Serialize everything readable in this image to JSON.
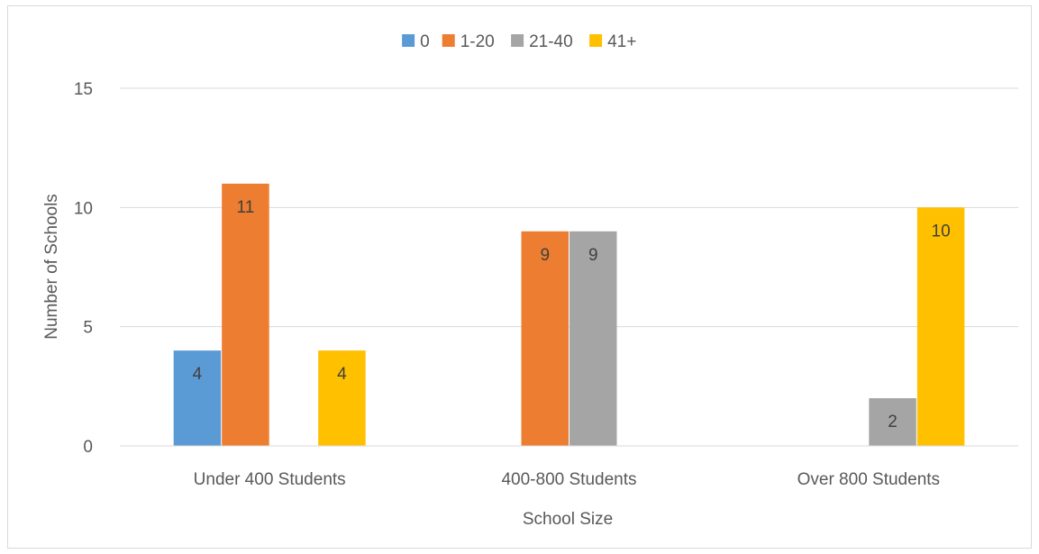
{
  "chart_data": {
    "type": "bar",
    "title": "",
    "xlabel": "School Size",
    "ylabel": "Number of Schools",
    "categories": [
      "Under 400 Students",
      "400-800 Students",
      "Over 800 Students"
    ],
    "series": [
      {
        "name": "0",
        "color": "#5b9bd5",
        "values": [
          4,
          0,
          0
        ]
      },
      {
        "name": "1-20",
        "color": "#ed7d31",
        "values": [
          11,
          9,
          0
        ]
      },
      {
        "name": "21-40",
        "color": "#a5a5a5",
        "values": [
          0,
          9,
          2
        ]
      },
      {
        "name": "41+",
        "color": "#ffc000",
        "values": [
          4,
          0,
          10
        ]
      }
    ],
    "ylim": [
      0,
      15
    ],
    "yticks": [
      0,
      5,
      10,
      15
    ],
    "grid": true,
    "legend_position": "top",
    "data_labels": true,
    "gridline_color": "#d9d9d9",
    "axis_text_color": "#595959"
  }
}
